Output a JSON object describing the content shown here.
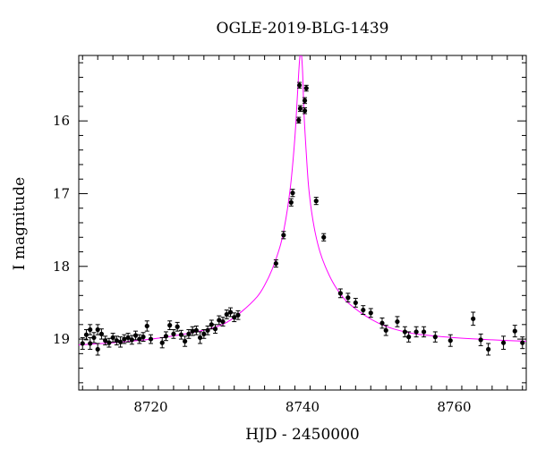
{
  "chart_data": {
    "type": "scatter",
    "title": "OGLE-2019-BLG-1439",
    "xlabel": "HJD - 2450000",
    "ylabel": "I magnitude",
    "xlim": [
      8710.5,
      8769.5
    ],
    "ylim": [
      19.7,
      15.1
    ],
    "y_inverted": true,
    "xticks": [
      8720,
      8740,
      8760
    ],
    "yticks": [
      16,
      17,
      18,
      19
    ],
    "xtick_labels": [
      "8720",
      "8740",
      "8760"
    ],
    "ytick_labels": [
      "16",
      "17",
      "18",
      "19"
    ],
    "grid": false,
    "colors": {
      "model": "#ff00ff",
      "points": "#000000"
    },
    "model": {
      "name": "",
      "description": "magenta microlensing model curve",
      "x": [
        8710.5,
        8715,
        8720,
        8725,
        8728,
        8730,
        8732,
        8734,
        8735,
        8736,
        8737,
        8737.5,
        8738,
        8738.5,
        8739,
        8739.3,
        8739.6,
        8739.8,
        8740.0,
        8740.2,
        8740.5,
        8740.8,
        8741.2,
        8741.7,
        8742.3,
        8743,
        8744,
        8745,
        8746,
        8748,
        8750,
        8752,
        8755,
        8760,
        8765,
        8769.5
      ],
      "y": [
        19.08,
        19.05,
        19.0,
        18.92,
        18.85,
        18.77,
        18.62,
        18.42,
        18.26,
        18.04,
        17.74,
        17.52,
        17.22,
        16.82,
        16.22,
        15.7,
        15.18,
        15.05,
        15.3,
        15.9,
        16.45,
        16.9,
        17.25,
        17.55,
        17.8,
        18.0,
        18.22,
        18.38,
        18.5,
        18.66,
        18.78,
        18.86,
        18.93,
        18.98,
        19.01,
        19.03
      ]
    },
    "points": {
      "x": [
        8711.0,
        8711.5,
        8712.0,
        8712.0,
        8712.5,
        8713.0,
        8713.0,
        8713.5,
        8714.0,
        8714.5,
        8715.0,
        8715.5,
        8716.0,
        8716.5,
        8717.0,
        8717.5,
        8718.0,
        8718.5,
        8719.0,
        8719.5,
        8720.0,
        8721.5,
        8722.0,
        8722.5,
        8723.0,
        8723.5,
        8724.0,
        8724.5,
        8725.0,
        8725.5,
        8726.0,
        8726.5,
        8727.0,
        8727.5,
        8728.0,
        8728.5,
        8729.0,
        8729.5,
        8730.0,
        8730.5,
        8731.0,
        8731.5,
        8736.5,
        8737.5,
        8738.5,
        8738.7,
        8739.5,
        8739.7,
        8739.6,
        8740.3,
        8740.5,
        8740.3,
        8741.8,
        8742.8,
        8745.0,
        8746.0,
        8747.0,
        8748.0,
        8749.0,
        8750.5,
        8751.0,
        8752.5,
        8753.5,
        8754.0,
        8755.0,
        8756.0,
        8757.5,
        8759.5,
        8762.5,
        8763.5,
        8764.5,
        8766.5,
        8768.0,
        8769.0
      ],
      "y": [
        19.06,
        18.94,
        18.87,
        19.06,
        18.98,
        18.87,
        19.14,
        18.93,
        19.02,
        19.05,
        18.98,
        19.02,
        19.04,
        19.0,
        18.98,
        19.01,
        18.95,
        19.0,
        18.97,
        18.82,
        19.0,
        19.05,
        18.96,
        18.81,
        18.93,
        18.83,
        18.94,
        19.03,
        18.93,
        18.89,
        18.88,
        18.98,
        18.93,
        18.88,
        18.8,
        18.86,
        18.74,
        18.76,
        18.66,
        18.63,
        18.7,
        18.67,
        17.96,
        17.57,
        17.12,
        16.99,
        15.99,
        15.83,
        15.51,
        15.72,
        15.55,
        15.86,
        17.1,
        17.6,
        18.37,
        18.43,
        18.5,
        18.6,
        18.64,
        18.78,
        18.88,
        18.76,
        18.9,
        18.97,
        18.9,
        18.9,
        18.97,
        19.02,
        18.72,
        19.01,
        19.14,
        19.05,
        18.89,
        19.05
      ],
      "yerr": [
        0.08,
        0.07,
        0.07,
        0.08,
        0.07,
        0.07,
        0.08,
        0.07,
        0.06,
        0.06,
        0.06,
        0.06,
        0.07,
        0.06,
        0.06,
        0.06,
        0.06,
        0.06,
        0.06,
        0.07,
        0.06,
        0.07,
        0.06,
        0.06,
        0.06,
        0.06,
        0.06,
        0.07,
        0.06,
        0.06,
        0.06,
        0.08,
        0.06,
        0.06,
        0.06,
        0.06,
        0.06,
        0.06,
        0.06,
        0.06,
        0.06,
        0.06,
        0.05,
        0.05,
        0.05,
        0.05,
        0.04,
        0.04,
        0.04,
        0.04,
        0.04,
        0.04,
        0.05,
        0.05,
        0.06,
        0.06,
        0.06,
        0.06,
        0.06,
        0.07,
        0.07,
        0.07,
        0.07,
        0.07,
        0.07,
        0.07,
        0.07,
        0.08,
        0.09,
        0.08,
        0.08,
        0.09,
        0.08,
        0.08
      ]
    }
  }
}
